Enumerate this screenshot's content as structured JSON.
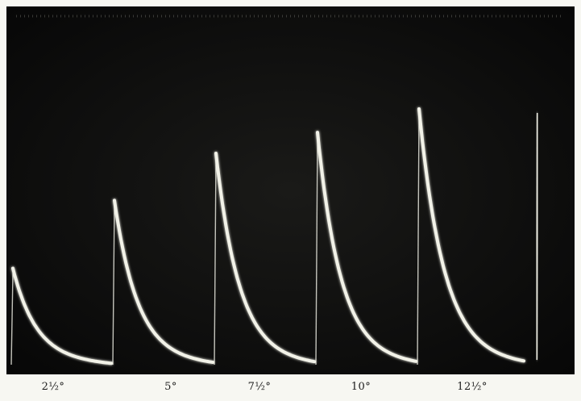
{
  "plate": {
    "background_color": "#0d0d0c",
    "trace_color": "#f2f2e8",
    "frame_color": "#f7f7f2"
  },
  "captions": [
    {
      "label": "2½°",
      "peak_relative": 0.35
    },
    {
      "label": "5°",
      "peak_relative": 0.61
    },
    {
      "label": "7½°",
      "peak_relative": 0.79
    },
    {
      "label": "10°",
      "peak_relative": 0.87
    },
    {
      "label": "12½°",
      "peak_relative": 0.96
    }
  ]
}
